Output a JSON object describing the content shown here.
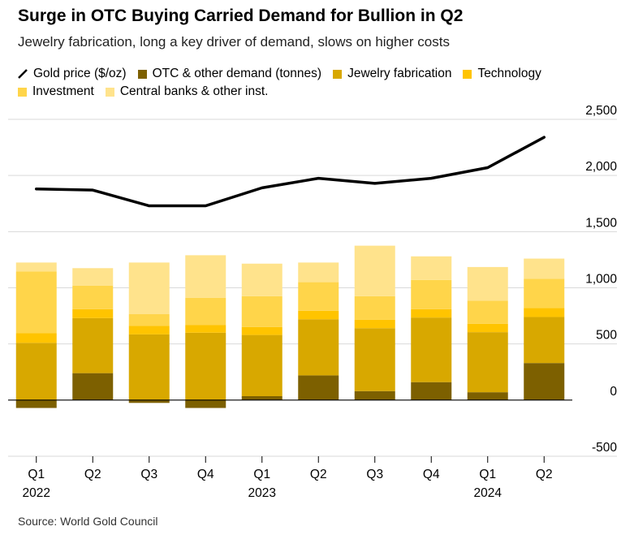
{
  "header": {
    "title": "Surge in OTC Buying Carried Demand for Bullion in Q2",
    "subtitle": "Jewelry fabrication, long a key driver of demand, slows on higher costs"
  },
  "source": "Source: World Gold Council",
  "colors": {
    "gold_line": "#000000",
    "otc": "#7d6000",
    "jewelry": "#d8a800",
    "technology": "#ffc400",
    "investment": "#ffd54a",
    "central_banks": "#ffe38c",
    "axis": "#000000",
    "grid": "#d9d9d9"
  },
  "legend": {
    "gold_price": "Gold price ($/oz)",
    "otc": "OTC & other demand (tonnes)",
    "jewelry": "Jewelry fabrication",
    "technology": "Technology",
    "investment": "Investment",
    "central_banks": "Central banks & other inst."
  },
  "chart_data": {
    "type": "bar",
    "stacked": true,
    "categories": [
      "Q1",
      "Q2",
      "Q3",
      "Q4",
      "Q1",
      "Q2",
      "Q3",
      "Q4",
      "Q1",
      "Q2"
    ],
    "year_labels": [
      {
        "index": 0,
        "label": "2022"
      },
      {
        "index": 4,
        "label": "2023"
      },
      {
        "index": 8,
        "label": "2024"
      }
    ],
    "series": [
      {
        "name": "OTC & other demand (tonnes)",
        "key": "otc",
        "values": [
          -70,
          240,
          -25,
          -70,
          35,
          220,
          80,
          160,
          70,
          330
        ]
      },
      {
        "name": "Jewelry fabrication",
        "key": "jewelry",
        "values": [
          510,
          490,
          585,
          600,
          545,
          500,
          560,
          575,
          535,
          410
        ]
      },
      {
        "name": "Technology",
        "key": "technology",
        "values": [
          85,
          80,
          75,
          70,
          70,
          75,
          75,
          75,
          75,
          80
        ]
      },
      {
        "name": "Investment",
        "key": "investment",
        "values": [
          550,
          210,
          105,
          240,
          275,
          255,
          210,
          260,
          205,
          260
        ]
      },
      {
        "name": "Central banks & other inst.",
        "key": "central_banks",
        "values": [
          80,
          155,
          460,
          380,
          290,
          175,
          450,
          210,
          300,
          180
        ]
      }
    ],
    "line_series": {
      "name": "Gold price ($/oz)",
      "values": [
        1880,
        1870,
        1730,
        1730,
        1890,
        1975,
        1930,
        1975,
        2070,
        2340
      ]
    },
    "y_axis": {
      "position": "right",
      "ticks": [
        2500,
        2000,
        1500,
        1000,
        500,
        0,
        -500
      ],
      "tick_labels": [
        "2,500",
        "2,000",
        "1,500",
        "1,000",
        "500",
        "0",
        "-500"
      ],
      "range": [
        -500,
        2500
      ]
    },
    "xlabel": "",
    "ylabel": ""
  }
}
